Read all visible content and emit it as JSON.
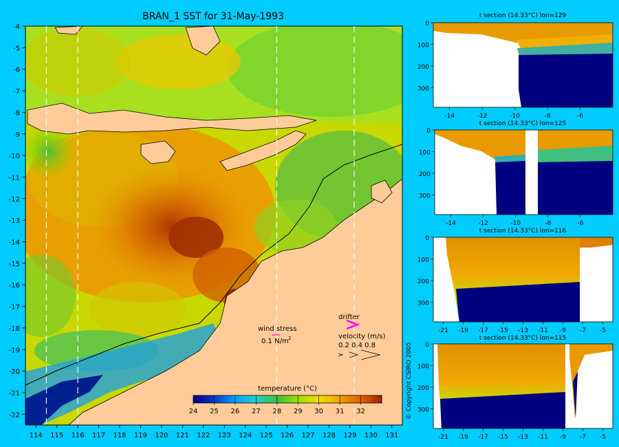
{
  "colors": {
    "background": "#00ccff",
    "land": "#ffcc99",
    "depth_section": "#000080"
  },
  "chart_data": [
    {
      "type": "heatmap",
      "title": "BRAN_1 SST for 31-May-1993",
      "xlim": [
        113.5,
        131.5
      ],
      "ylim": [
        -22.5,
        -4
      ],
      "x_ticks": [
        114,
        115,
        116,
        117,
        118,
        119,
        120,
        121,
        122,
        123,
        124,
        125,
        126,
        127,
        128,
        129,
        130,
        131
      ],
      "y_ticks": [
        -4,
        -5,
        -6,
        -7,
        -8,
        -9,
        -10,
        -11,
        -12,
        -13,
        -14,
        -15,
        -16,
        -17,
        -18,
        -19,
        -20,
        -21,
        -22
      ],
      "section_lines_lon": [
        114.5,
        116,
        125.5,
        129.2
      ],
      "colorbar": {
        "label": "temperature (°C)",
        "ticks": [
          24,
          25,
          26,
          27,
          28,
          29,
          30,
          31,
          32
        ],
        "range": [
          24,
          33
        ]
      },
      "legend": {
        "wind_stress_label": "wind stress",
        "wind_stress_value": "0.1 N/m",
        "wind_stress_exponent": "2",
        "drifter_label": "drifter",
        "velocity_label": "velocity (m/s)",
        "velocity_values": "0.2 0.4 0.8"
      }
    },
    {
      "type": "heatmap",
      "title": "t section (14.33°C) lon=129",
      "xlim": [
        -15,
        -4
      ],
      "ylim": [
        390,
        0
      ],
      "x_ticks": [
        -14,
        -12,
        -10,
        -8,
        -6
      ],
      "y_ticks": [
        0,
        100,
        200,
        300
      ]
    },
    {
      "type": "heatmap",
      "title": "t section (14.33°C) lon=125",
      "xlim": [
        -15,
        -4
      ],
      "ylim": [
        390,
        0
      ],
      "x_ticks": [
        -14,
        -12,
        -10,
        -8,
        -6
      ],
      "y_ticks": [
        0,
        100,
        200,
        300
      ]
    },
    {
      "type": "heatmap",
      "title": "t section (14.33°C) lon=116",
      "xlim": [
        -22,
        -4
      ],
      "ylim": [
        390,
        0
      ],
      "x_ticks": [
        -21,
        -19,
        -17,
        -15,
        -13,
        -11,
        -9,
        -7,
        -5
      ],
      "y_ticks": [
        0,
        100,
        200,
        300
      ]
    },
    {
      "type": "heatmap",
      "title": "t section (14.33°C) lon=115",
      "xlim": [
        -22,
        -4
      ],
      "ylim": [
        390,
        0
      ],
      "x_ticks": [
        -21,
        -19,
        -17,
        -15,
        -13,
        -11,
        -9,
        -7,
        -5
      ],
      "y_ticks": [
        0,
        100,
        200,
        300
      ]
    }
  ],
  "copyright": "© Copyright CSIRO 2005"
}
